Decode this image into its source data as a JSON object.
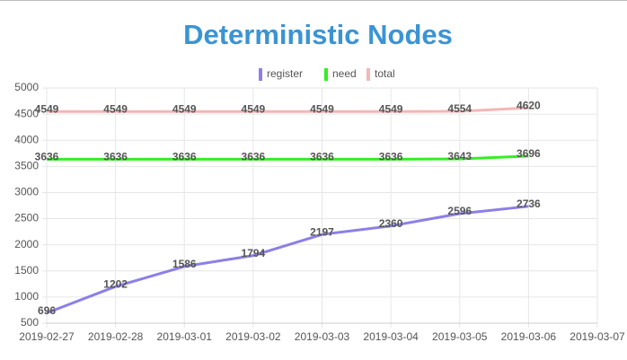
{
  "chart_data": {
    "type": "line",
    "title": "Deterministic Nodes",
    "x": [
      "2019-02-27",
      "2019-02-28",
      "2019-03-01",
      "2019-03-02",
      "2019-03-03",
      "2019-03-04",
      "2019-03-05",
      "2019-03-06",
      "2019-03-07"
    ],
    "series": [
      {
        "name": "register",
        "color": "#8c7fe8",
        "values": [
          696,
          1202,
          1586,
          1794,
          2197,
          2360,
          2596,
          2736,
          null
        ]
      },
      {
        "name": "need",
        "color": "#33ee22",
        "values": [
          3636,
          3636,
          3636,
          3636,
          3636,
          3636,
          3643,
          3696,
          null
        ]
      },
      {
        "name": "total",
        "color": "#f4b6b6",
        "values": [
          4549,
          4549,
          4549,
          4549,
          4549,
          4549,
          4554,
          4620,
          null
        ]
      }
    ],
    "ylim": [
      500,
      5000
    ],
    "yticks": [
      500,
      1000,
      1500,
      2000,
      2500,
      3000,
      3500,
      4000,
      4500,
      5000
    ],
    "grid": true,
    "legend": "top"
  }
}
